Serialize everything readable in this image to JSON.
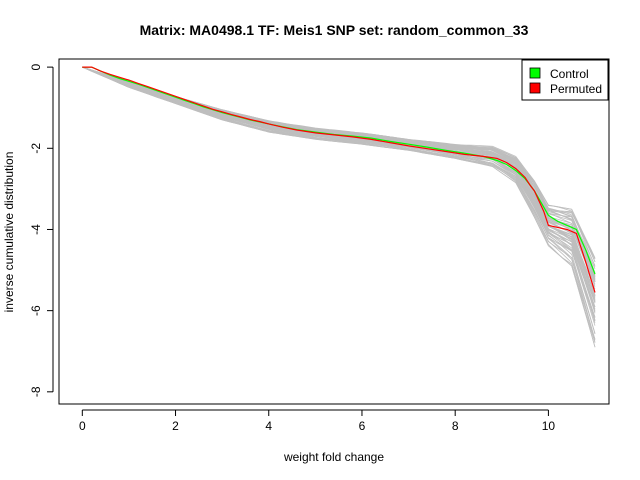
{
  "chart_data": {
    "type": "line",
    "title": "Matrix: MA0498.1 TF: Meis1 SNP set: random_common_33",
    "xlabel": "weight fold change",
    "ylabel": "inverse cumulative distribution",
    "xlim": [
      -0.5,
      11.3
    ],
    "ylim": [
      -8.3,
      0.2
    ],
    "x_ticks": [
      0,
      2,
      4,
      6,
      8,
      10
    ],
    "y_ticks": [
      0,
      -2,
      -4,
      -6,
      -8
    ],
    "grid": false,
    "legend_position": "top-right",
    "legend": [
      {
        "label": "Control",
        "color": "#00ff00"
      },
      {
        "label": "Permuted",
        "color": "#ff0000"
      }
    ],
    "background_curves": {
      "count": 60,
      "color": "#bebebe",
      "description_basis": "per-set null curves; envelope widens sharply after x=9.5",
      "envelope_upper": [
        [
          0,
          0
        ],
        [
          1,
          -0.35
        ],
        [
          2,
          -0.72
        ],
        [
          3,
          -1.05
        ],
        [
          4,
          -1.32
        ],
        [
          5,
          -1.5
        ],
        [
          6,
          -1.62
        ],
        [
          7,
          -1.78
        ],
        [
          8,
          -1.9
        ],
        [
          8.8,
          -1.95
        ],
        [
          9.3,
          -2.2
        ],
        [
          9.7,
          -2.8
        ],
        [
          10,
          -3.4
        ],
        [
          10.5,
          -3.5
        ],
        [
          11,
          -4.7
        ]
      ],
      "envelope_lower": [
        [
          0,
          0
        ],
        [
          1,
          -0.5
        ],
        [
          2,
          -0.9
        ],
        [
          3,
          -1.3
        ],
        [
          4,
          -1.6
        ],
        [
          5,
          -1.78
        ],
        [
          6,
          -1.9
        ],
        [
          7,
          -2.05
        ],
        [
          8,
          -2.25
        ],
        [
          8.8,
          -2.45
        ],
        [
          9.3,
          -2.85
        ],
        [
          9.7,
          -3.7
        ],
        [
          10,
          -4.4
        ],
        [
          10.5,
          -4.9
        ],
        [
          11,
          -6.9
        ]
      ]
    },
    "series": [
      {
        "name": "Control",
        "color": "#00ff00",
        "x": [
          0,
          0.2,
          0.4,
          0.6,
          0.8,
          1.0,
          1.2,
          1.4,
          1.6,
          1.8,
          2.0,
          2.2,
          2.4,
          2.6,
          2.8,
          3.0,
          3.2,
          3.4,
          3.6,
          3.8,
          4.0,
          4.3,
          4.6,
          5.0,
          5.4,
          5.8,
          6.2,
          6.6,
          7.0,
          7.4,
          7.8,
          8.2,
          8.6,
          8.9,
          9.1,
          9.3,
          9.5,
          9.6,
          9.7,
          9.8,
          9.9,
          10.0,
          10.2,
          10.4,
          10.6,
          10.8,
          11.0
        ],
        "values": [
          0,
          0,
          -0.1,
          -0.2,
          -0.28,
          -0.35,
          -0.42,
          -0.5,
          -0.58,
          -0.66,
          -0.74,
          -0.82,
          -0.9,
          -0.98,
          -1.05,
          -1.12,
          -1.18,
          -1.24,
          -1.3,
          -1.35,
          -1.4,
          -1.47,
          -1.54,
          -1.6,
          -1.66,
          -1.7,
          -1.75,
          -1.83,
          -1.9,
          -1.97,
          -2.05,
          -2.12,
          -2.2,
          -2.3,
          -2.4,
          -2.55,
          -2.75,
          -2.9,
          -3.05,
          -3.25,
          -3.45,
          -3.65,
          -3.8,
          -3.9,
          -4.0,
          -4.5,
          -5.1
        ]
      },
      {
        "name": "Permuted",
        "color": "#ff0000",
        "x": [
          0,
          0.2,
          0.4,
          0.6,
          0.8,
          1.0,
          1.2,
          1.4,
          1.6,
          1.8,
          2.0,
          2.2,
          2.4,
          2.6,
          2.8,
          3.0,
          3.2,
          3.4,
          3.6,
          3.8,
          4.0,
          4.3,
          4.6,
          5.0,
          5.4,
          5.8,
          6.2,
          6.6,
          7.0,
          7.4,
          7.8,
          8.2,
          8.6,
          8.9,
          9.1,
          9.3,
          9.5,
          9.6,
          9.7,
          9.8,
          9.9,
          10.0,
          10.2,
          10.4,
          10.6,
          10.8,
          11.0
        ],
        "values": [
          0,
          0,
          -0.1,
          -0.18,
          -0.25,
          -0.32,
          -0.4,
          -0.48,
          -0.56,
          -0.64,
          -0.72,
          -0.8,
          -0.88,
          -0.96,
          -1.04,
          -1.1,
          -1.17,
          -1.23,
          -1.29,
          -1.34,
          -1.4,
          -1.48,
          -1.55,
          -1.62,
          -1.67,
          -1.72,
          -1.78,
          -1.86,
          -1.94,
          -2.01,
          -2.08,
          -2.15,
          -2.2,
          -2.25,
          -2.35,
          -2.5,
          -2.72,
          -2.9,
          -3.05,
          -3.3,
          -3.55,
          -3.9,
          -3.95,
          -4.0,
          -4.1,
          -4.8,
          -5.55
        ]
      }
    ]
  }
}
